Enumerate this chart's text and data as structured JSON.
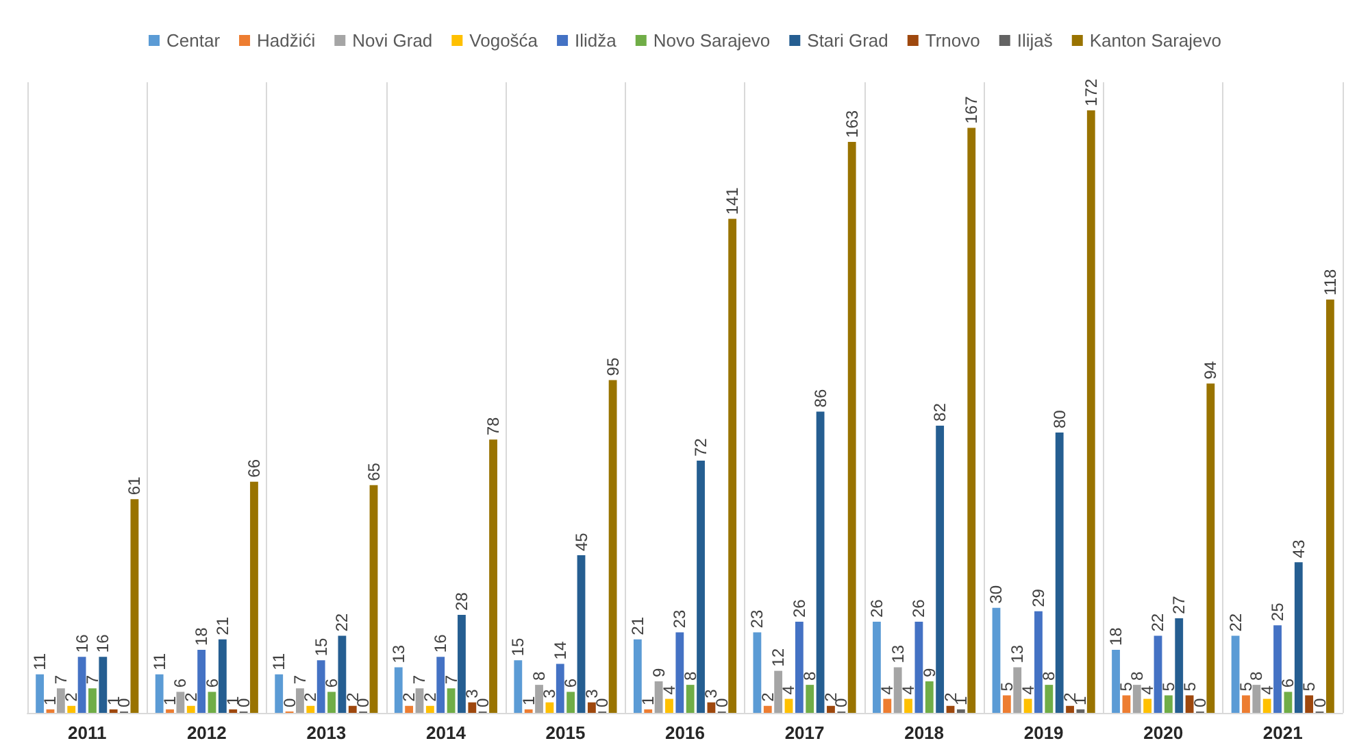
{
  "chart_data": {
    "type": "bar",
    "categories": [
      "2011",
      "2012",
      "2013",
      "2014",
      "2015",
      "2016",
      "2017",
      "2018",
      "2019",
      "2020",
      "2021"
    ],
    "series": [
      {
        "name": "Centar",
        "color": "#5b9bd5",
        "values": [
          11,
          11,
          11,
          13,
          15,
          21,
          23,
          26,
          30,
          18,
          22
        ]
      },
      {
        "name": "Hadžići",
        "color": "#ed7d31",
        "values": [
          1,
          1,
          0,
          2,
          1,
          1,
          2,
          4,
          5,
          5,
          5
        ]
      },
      {
        "name": "Novi Grad",
        "color": "#a5a5a5",
        "values": [
          7,
          6,
          7,
          7,
          8,
          9,
          12,
          13,
          13,
          8,
          8
        ]
      },
      {
        "name": "Vogošća",
        "color": "#ffc000",
        "values": [
          2,
          2,
          2,
          2,
          3,
          4,
          4,
          4,
          4,
          4,
          4
        ]
      },
      {
        "name": "Ilidža",
        "color": "#4472c4",
        "values": [
          16,
          18,
          15,
          16,
          14,
          23,
          26,
          26,
          29,
          22,
          25
        ]
      },
      {
        "name": "Novo Sarajevo",
        "color": "#70ad47",
        "values": [
          7,
          6,
          6,
          7,
          6,
          8,
          8,
          9,
          8,
          5,
          6
        ]
      },
      {
        "name": "Stari Grad",
        "color": "#255e91",
        "values": [
          16,
          21,
          22,
          28,
          45,
          72,
          86,
          82,
          80,
          27,
          43
        ]
      },
      {
        "name": "Trnovo",
        "color": "#9e480e",
        "values": [
          1,
          1,
          2,
          3,
          3,
          3,
          2,
          2,
          2,
          5,
          5
        ]
      },
      {
        "name": "Ilijaš",
        "color": "#636363",
        "values": [
          0,
          0,
          0,
          0,
          0,
          0,
          0,
          1,
          1,
          0,
          0
        ]
      },
      {
        "name": "Kanton Sarajevo",
        "color": "#997300",
        "values": [
          61,
          66,
          65,
          78,
          95,
          141,
          163,
          167,
          172,
          94,
          118
        ]
      }
    ],
    "data_labels": true,
    "legend": "top",
    "grid": "x",
    "tick_labels": "x"
  }
}
